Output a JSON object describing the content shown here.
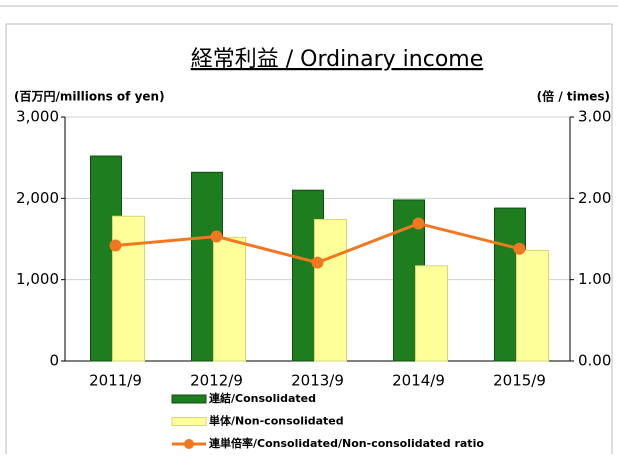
{
  "chart_data": {
    "type": "bar",
    "title": "経常利益 / Ordinary income",
    "y_label": "(百万円/millions of yen)",
    "y2_label": "(倍 / times)",
    "categories": [
      "2011/9",
      "2012/9",
      "2013/9",
      "2014/9",
      "2015/9"
    ],
    "series": [
      {
        "name": "連結/Consolidated",
        "type": "bar",
        "color": "#1e7d1e",
        "values": [
          2520,
          2320,
          2100,
          1980,
          1880
        ]
      },
      {
        "name": "単体/Non-consolidated",
        "type": "bar",
        "color": "#ffff99",
        "values": [
          1780,
          1520,
          1740,
          1170,
          1360
        ]
      },
      {
        "name": "連単倍率/Consolidated/Non-consolidated ratio",
        "type": "line",
        "axis": "y2",
        "color": "#f07820",
        "values": [
          1.42,
          1.53,
          1.21,
          1.69,
          1.38
        ]
      }
    ],
    "ylim": [
      0,
      3000
    ],
    "yticks": [
      0,
      {
        "value": 1000,
        "label": "1,000"
      },
      {
        "value": 2000,
        "label": "2,000"
      },
      {
        "value": 3000,
        "label": "3,000"
      }
    ],
    "y2lim": [
      0,
      3
    ],
    "y2ticks": [
      {
        "value": 0,
        "label": "0.00"
      },
      {
        "value": 1,
        "label": "1.00"
      },
      {
        "value": 2,
        "label": "2.00"
      },
      {
        "value": 3,
        "label": "3.00"
      }
    ],
    "grid": true
  }
}
